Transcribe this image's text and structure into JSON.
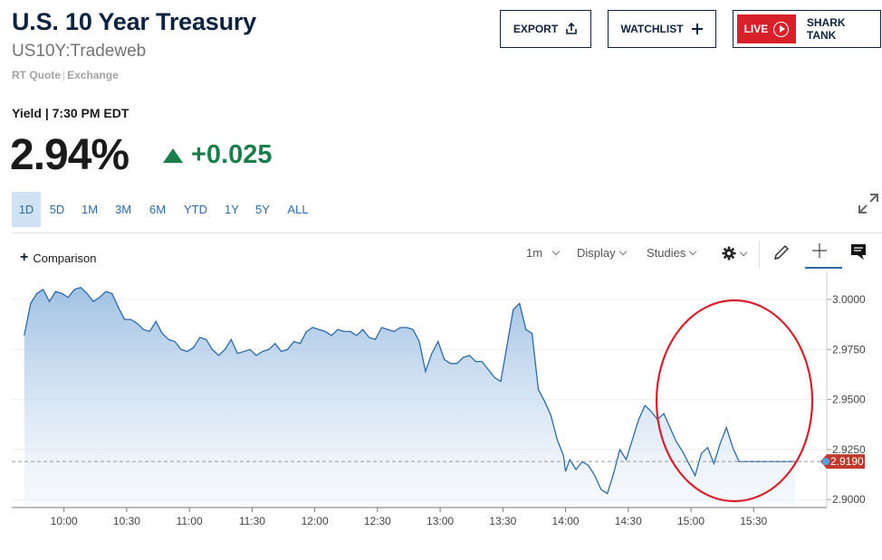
{
  "header": {
    "title": "U.S. 10 Year Treasury",
    "symbol": "US10Y:Tradeweb",
    "quote_type": "RT Quote",
    "quote_exchange": "Exchange"
  },
  "buttons": {
    "export": "EXPORT",
    "watchlist": "WATCHLIST",
    "live": "LIVE",
    "live_show": "SHARK TANK"
  },
  "quote": {
    "yield_label": "Yield | 7:30 PM EDT",
    "price": "2.94%",
    "change": "+0.025",
    "change_color": "#1a7f4b"
  },
  "ranges": [
    "1D",
    "5D",
    "1M",
    "3M",
    "6M",
    "YTD",
    "1Y",
    "5Y",
    "ALL"
  ],
  "active_range": "1D",
  "toolbar": {
    "comparison": "Comparison",
    "interval": "1m",
    "display": "Display",
    "studies": "Studies"
  },
  "chart_data": {
    "type": "area",
    "title": "",
    "xlabel": "",
    "ylabel": "",
    "x_ticks": [
      "10:00",
      "10:30",
      "11:00",
      "11:30",
      "12:00",
      "12:30",
      "13:00",
      "13:30",
      "14:00",
      "14:30",
      "15:00",
      "15:30"
    ],
    "y_ticks": [
      "3.0000",
      "2.9750",
      "2.9500",
      "2.9250",
      "2.9000"
    ],
    "ylim": [
      2.9,
      3.0
    ],
    "current_value_label": "2.9190",
    "line_color": "#2b6aa8",
    "label_color": "#c0392b",
    "series": [
      {
        "x": [
          "09:41",
          "09:44",
          "09:47",
          "09:50",
          "09:53",
          "09:56",
          "09:59",
          "10:02",
          "10:05",
          "10:08",
          "10:11",
          "10:14",
          "10:17",
          "10:20",
          "10:23",
          "10:26",
          "10:29",
          "10:32",
          "10:35",
          "10:38",
          "10:41",
          "10:44",
          "10:47",
          "10:50",
          "10:53",
          "10:56",
          "10:59",
          "11:02",
          "11:05",
          "11:08",
          "11:11",
          "11:14",
          "11:17",
          "11:20",
          "11:23",
          "11:26",
          "11:29",
          "11:32",
          "11:35",
          "11:38",
          "11:41",
          "11:44",
          "11:47",
          "11:50",
          "11:53",
          "11:56",
          "11:59",
          "12:02",
          "12:05",
          "12:08",
          "12:11",
          "12:14",
          "12:17",
          "12:20",
          "12:23",
          "12:26",
          "12:29",
          "12:32",
          "12:35",
          "12:38",
          "12:41",
          "12:44",
          "12:47",
          "12:50",
          "12:53",
          "12:56",
          "12:59",
          "13:02",
          "13:05",
          "13:08",
          "13:11",
          "13:14",
          "13:17",
          "13:20",
          "13:23",
          "13:26",
          "13:29",
          "13:32",
          "13:35",
          "13:38",
          "13:41",
          "13:44",
          "13:47",
          "13:50",
          "13:53",
          "13:56",
          "13:59",
          "14:00",
          "14:02",
          "14:05",
          "14:08",
          "14:11",
          "14:14",
          "14:17",
          "14:20",
          "14:23",
          "14:26",
          "14:29",
          "14:32",
          "14:35",
          "14:38",
          "14:41",
          "14:44",
          "14:47",
          "14:50",
          "14:53",
          "14:56",
          "14:59",
          "15:02",
          "15:05",
          "15:08",
          "15:11",
          "15:14",
          "15:17",
          "15:20",
          "15:23",
          "15:26",
          "15:29",
          "15:32",
          "15:35",
          "15:38",
          "15:41",
          "15:44",
          "15:47",
          "15:50"
        ],
        "y": [
          2.982,
          2.998,
          3.003,
          3.005,
          2.999,
          3.004,
          3.003,
          3.001,
          3.005,
          3.006,
          3.003,
          2.999,
          3.001,
          3.004,
          3.003,
          2.996,
          2.99,
          2.99,
          2.988,
          2.985,
          2.984,
          2.989,
          2.983,
          2.98,
          2.979,
          2.975,
          2.974,
          2.976,
          2.981,
          2.98,
          2.975,
          2.972,
          2.975,
          2.98,
          2.973,
          2.974,
          2.975,
          2.972,
          2.974,
          2.975,
          2.978,
          2.974,
          2.975,
          2.979,
          2.978,
          2.984,
          2.986,
          2.985,
          2.984,
          2.982,
          2.985,
          2.984,
          2.984,
          2.982,
          2.985,
          2.981,
          2.98,
          2.986,
          2.985,
          2.984,
          2.986,
          2.986,
          2.985,
          2.979,
          2.964,
          2.973,
          2.979,
          2.97,
          2.968,
          2.968,
          2.971,
          2.972,
          2.969,
          2.969,
          2.965,
          2.961,
          2.959,
          2.977,
          2.995,
          2.998,
          2.985,
          2.983,
          2.955,
          2.949,
          2.942,
          2.93,
          2.922,
          2.914,
          2.92,
          2.915,
          2.919,
          2.917,
          2.912,
          2.905,
          2.903,
          2.913,
          2.925,
          2.92,
          2.93,
          2.94,
          2.947,
          2.944,
          2.94,
          2.943,
          2.936,
          2.929,
          2.924,
          2.918,
          2.912,
          2.923,
          2.926,
          2.918,
          2.928,
          2.936,
          2.926,
          2.919,
          2.919,
          2.919,
          2.919,
          2.919,
          2.919,
          2.919,
          2.919,
          2.919,
          2.919
        ]
      }
    ]
  }
}
